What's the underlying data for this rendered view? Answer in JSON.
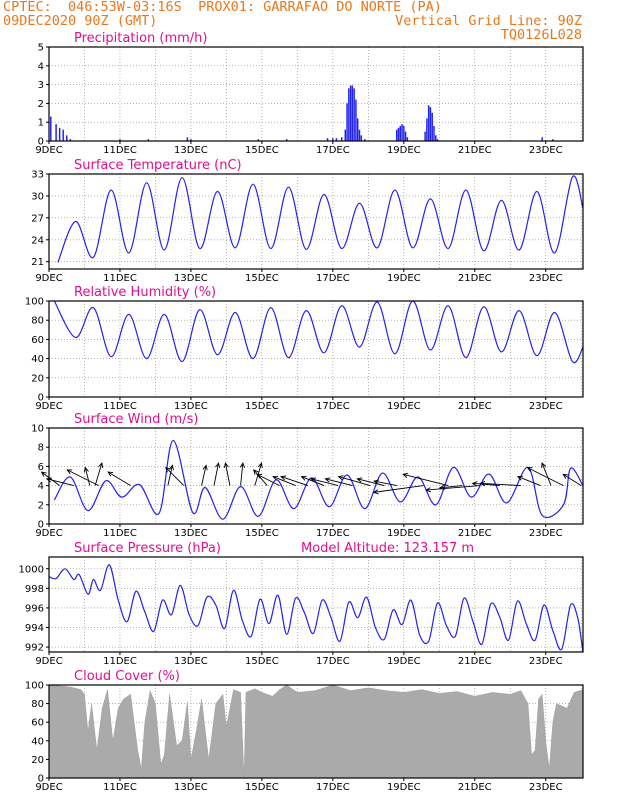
{
  "header": {
    "line1_left": "CPTEC:  046:53W-03:16S  PROX01: GARRAFAO DO NORTE (PA)",
    "line2_left": "09DEC2020 90Z (GMT)",
    "line2_right": "Vertical Grid Line: 90Z",
    "line3_right": "TQ0126L028"
  },
  "colors": {
    "header": "#e8781c",
    "title": "#e0108c",
    "series": "#2222ee",
    "cloud": "#aaaaaa",
    "arrow": "#000000"
  },
  "x_ticks": [
    "9DEC",
    "11DEC",
    "13DEC",
    "15DEC",
    "17DEC",
    "19DEC",
    "21DEC",
    "23DEC"
  ],
  "chart_data": [
    {
      "id": "precip",
      "type": "bar",
      "title": "Precipitation (mm/h)",
      "ylim": [
        0,
        5
      ],
      "yticks": [
        0,
        1,
        2,
        3,
        4,
        5
      ],
      "points": [
        [
          9.05,
          1.3
        ],
        [
          9.2,
          0.9
        ],
        [
          9.3,
          0.7
        ],
        [
          9.4,
          0.6
        ],
        [
          9.5,
          0.3
        ],
        [
          9.6,
          0.1
        ],
        [
          11.0,
          0.1
        ],
        [
          11.8,
          0.1
        ],
        [
          12.9,
          0.2
        ],
        [
          13.0,
          0.1
        ],
        [
          14.9,
          0.1
        ],
        [
          15.7,
          0.1
        ],
        [
          16.85,
          0.15
        ],
        [
          17.0,
          0.15
        ],
        [
          17.1,
          0.15
        ],
        [
          17.25,
          0.2
        ],
        [
          17.35,
          0.6
        ],
        [
          17.4,
          2.0
        ],
        [
          17.45,
          2.8
        ],
        [
          17.5,
          2.95
        ],
        [
          17.55,
          2.95
        ],
        [
          17.6,
          2.8
        ],
        [
          17.65,
          2.2
        ],
        [
          17.7,
          1.2
        ],
        [
          17.75,
          0.6
        ],
        [
          17.8,
          0.3
        ],
        [
          17.9,
          0.1
        ],
        [
          18.8,
          0.6
        ],
        [
          18.85,
          0.7
        ],
        [
          18.9,
          0.8
        ],
        [
          18.95,
          0.9
        ],
        [
          19.0,
          0.8
        ],
        [
          19.05,
          0.5
        ],
        [
          19.1,
          0.2
        ],
        [
          19.6,
          0.5
        ],
        [
          19.65,
          1.2
        ],
        [
          19.7,
          1.9
        ],
        [
          19.75,
          1.8
        ],
        [
          19.8,
          1.5
        ],
        [
          19.85,
          0.8
        ],
        [
          19.9,
          0.3
        ],
        [
          19.95,
          0.1
        ],
        [
          22.9,
          0.2
        ],
        [
          23.2,
          0.1
        ]
      ]
    },
    {
      "id": "temp",
      "type": "line",
      "title": "Surface Temperature (nC)",
      "ylim": [
        20,
        33
      ],
      "yticks": [
        21,
        24,
        27,
        30,
        33
      ],
      "minima": [
        [
          9.25,
          20.9
        ],
        [
          10.25,
          21.6
        ],
        [
          11.25,
          22.2
        ],
        [
          12.25,
          22.6
        ],
        [
          13.25,
          22.8
        ],
        [
          14.25,
          22.9
        ],
        [
          15.25,
          22.8
        ],
        [
          16.25,
          22.7
        ],
        [
          17.25,
          22.8
        ],
        [
          18.25,
          22.9
        ],
        [
          19.25,
          22.9
        ],
        [
          20.25,
          22.8
        ],
        [
          21.25,
          22.5
        ],
        [
          22.25,
          22.6
        ],
        [
          23.25,
          22.2
        ]
      ],
      "maxima": [
        [
          9.75,
          26.5
        ],
        [
          10.75,
          30.8
        ],
        [
          11.75,
          31.8
        ],
        [
          12.75,
          32.5
        ],
        [
          13.75,
          30.6
        ],
        [
          14.75,
          31.6
        ],
        [
          15.75,
          31.2
        ],
        [
          16.75,
          30.2
        ],
        [
          17.75,
          29.0
        ],
        [
          18.75,
          30.8
        ],
        [
          19.75,
          29.6
        ],
        [
          20.75,
          30.8
        ],
        [
          21.75,
          29.4
        ],
        [
          22.75,
          30.6
        ],
        [
          23.75,
          32.6
        ]
      ],
      "end": [
        24.05,
        28.3
      ]
    },
    {
      "id": "rh",
      "type": "line",
      "title": "Relative Humidity (%)",
      "ylim": [
        0,
        100
      ],
      "yticks": [
        0,
        20,
        40,
        60,
        80,
        100
      ],
      "maxima": [
        [
          9.15,
          100
        ],
        [
          10.25,
          93
        ],
        [
          11.25,
          86
        ],
        [
          12.25,
          86
        ],
        [
          13.25,
          91
        ],
        [
          14.25,
          88
        ],
        [
          15.25,
          93
        ],
        [
          16.25,
          90
        ],
        [
          17.25,
          95
        ],
        [
          18.25,
          99
        ],
        [
          19.25,
          100
        ],
        [
          20.25,
          95
        ],
        [
          21.25,
          94
        ],
        [
          22.25,
          90
        ],
        [
          23.25,
          88
        ]
      ],
      "minima": [
        [
          9.75,
          62
        ],
        [
          10.75,
          42
        ],
        [
          11.75,
          40
        ],
        [
          12.75,
          37
        ],
        [
          13.75,
          44
        ],
        [
          14.75,
          40
        ],
        [
          15.75,
          41
        ],
        [
          16.75,
          46
        ],
        [
          17.75,
          52
        ],
        [
          18.75,
          45
        ],
        [
          19.75,
          49
        ],
        [
          20.75,
          41
        ],
        [
          21.75,
          47
        ],
        [
          22.75,
          43
        ],
        [
          23.75,
          37
        ]
      ],
      "end": [
        24.05,
        52
      ]
    },
    {
      "id": "wind",
      "type": "line",
      "title": "Surface Wind (m/s)",
      "ylim": [
        0,
        10
      ],
      "yticks": [
        0,
        2,
        4,
        6,
        8,
        10
      ],
      "minima": [
        [
          9.15,
          2.5
        ],
        [
          10.1,
          1.4
        ],
        [
          11.05,
          2.8
        ],
        [
          12.1,
          1.1
        ],
        [
          13.05,
          1.2
        ],
        [
          13.9,
          0.5
        ],
        [
          14.9,
          0.8
        ],
        [
          15.9,
          1.6
        ],
        [
          16.9,
          1.8
        ],
        [
          17.9,
          1.6
        ],
        [
          18.9,
          2.3
        ],
        [
          19.9,
          2.0
        ],
        [
          20.9,
          2.8
        ],
        [
          21.9,
          2.2
        ],
        [
          22.9,
          0.9
        ],
        [
          23.5,
          2.0
        ]
      ],
      "maxima": [
        [
          9.6,
          4.9
        ],
        [
          10.6,
          4.5
        ],
        [
          11.55,
          4.1
        ],
        [
          12.5,
          8.7
        ],
        [
          13.4,
          3.8
        ],
        [
          14.4,
          3.9
        ],
        [
          15.4,
          4.6
        ],
        [
          16.4,
          4.8
        ],
        [
          17.4,
          5.1
        ],
        [
          18.4,
          5.3
        ],
        [
          19.4,
          4.9
        ],
        [
          20.4,
          5.9
        ],
        [
          21.4,
          5.2
        ],
        [
          22.5,
          5.9
        ],
        [
          23.7,
          5.8
        ]
      ],
      "end": [
        24.05,
        4.0
      ],
      "arrows": [
        [
          9.3,
          -0.4,
          -0.3
        ],
        [
          9.7,
          -0.6,
          -0.15
        ],
        [
          10.15,
          -0.1,
          -0.4
        ],
        [
          10.3,
          0.15,
          -0.5
        ],
        [
          10.4,
          -0.7,
          -0.35
        ],
        [
          11.3,
          -0.5,
          -0.3
        ],
        [
          12.35,
          0.1,
          -0.45
        ],
        [
          12.8,
          -0.4,
          -0.4
        ],
        [
          13.3,
          0.1,
          -0.45
        ],
        [
          13.65,
          0.1,
          -0.5
        ],
        [
          14.1,
          -0.1,
          -0.5
        ],
        [
          14.4,
          0.05,
          -0.5
        ],
        [
          14.8,
          0.15,
          -0.5
        ],
        [
          15.15,
          -0.3,
          -0.35
        ],
        [
          15.5,
          -0.5,
          -0.25
        ],
        [
          15.95,
          -0.5,
          -0.2
        ],
        [
          16.3,
          -0.6,
          -0.2
        ],
        [
          16.75,
          -0.5,
          -0.2
        ],
        [
          17.15,
          -0.6,
          -0.15
        ],
        [
          17.55,
          -0.6,
          -0.15
        ],
        [
          18.05,
          -0.7,
          -0.2
        ],
        [
          18.45,
          -0.6,
          -0.15
        ],
        [
          18.8,
          -0.5,
          -0.1
        ],
        [
          19.55,
          -1.1,
          0.15
        ],
        [
          20.25,
          -1.0,
          -0.25
        ],
        [
          20.65,
          -0.5,
          0.05
        ],
        [
          21.15,
          -1.2,
          0.1
        ],
        [
          21.7,
          -0.6,
          -0.05
        ],
        [
          22.3,
          -0.9,
          -0.05
        ],
        [
          22.85,
          -0.5,
          -0.2
        ],
        [
          23.15,
          -0.2,
          -0.5
        ],
        [
          23.5,
          -0.8,
          -0.4
        ],
        [
          24.0,
          -0.4,
          -0.25
        ]
      ]
    },
    {
      "id": "pres",
      "type": "line",
      "title": "Surface Pressure (hPa)",
      "annotation": "Model Altitude: 123.157  m",
      "ylim": [
        991.5,
        1001.2
      ],
      "yticks": [
        992,
        994,
        996,
        998,
        1000
      ],
      "points": [
        [
          9.0,
          999.2
        ],
        [
          9.2,
          999.0
        ],
        [
          9.45,
          1000.0
        ],
        [
          9.7,
          998.9
        ],
        [
          9.85,
          999.4
        ],
        [
          10.1,
          997.4
        ],
        [
          10.25,
          998.9
        ],
        [
          10.45,
          997.8
        ],
        [
          10.7,
          1000.4
        ],
        [
          10.95,
          996.8
        ],
        [
          11.2,
          994.6
        ],
        [
          11.45,
          997.7
        ],
        [
          11.7,
          995.6
        ],
        [
          11.95,
          993.6
        ],
        [
          12.2,
          996.8
        ],
        [
          12.45,
          995.3
        ],
        [
          12.7,
          998.3
        ],
        [
          12.95,
          995.3
        ],
        [
          13.2,
          994.2
        ],
        [
          13.45,
          997.1
        ],
        [
          13.7,
          996.3
        ],
        [
          13.95,
          993.9
        ],
        [
          14.2,
          997.8
        ],
        [
          14.45,
          994.7
        ],
        [
          14.7,
          993.1
        ],
        [
          14.95,
          996.9
        ],
        [
          15.2,
          994.4
        ],
        [
          15.45,
          997.3
        ],
        [
          15.7,
          993.3
        ],
        [
          15.95,
          997.0
        ],
        [
          16.2,
          995.5
        ],
        [
          16.45,
          993.4
        ],
        [
          16.7,
          996.8
        ],
        [
          16.95,
          995.0
        ],
        [
          17.2,
          992.6
        ],
        [
          17.45,
          996.6
        ],
        [
          17.7,
          995.0
        ],
        [
          17.95,
          997.1
        ],
        [
          18.2,
          994.0
        ],
        [
          18.45,
          992.8
        ],
        [
          18.7,
          995.8
        ],
        [
          18.95,
          994.3
        ],
        [
          19.2,
          996.8
        ],
        [
          19.45,
          993.2
        ],
        [
          19.7,
          992.6
        ],
        [
          19.95,
          996.5
        ],
        [
          20.2,
          994.2
        ],
        [
          20.45,
          993.1
        ],
        [
          20.7,
          997.0
        ],
        [
          20.95,
          994.6
        ],
        [
          21.2,
          992.3
        ],
        [
          21.45,
          996.4
        ],
        [
          21.7,
          995.1
        ],
        [
          21.95,
          992.7
        ],
        [
          22.2,
          996.7
        ],
        [
          22.45,
          994.4
        ],
        [
          22.7,
          992.7
        ],
        [
          22.95,
          996.3
        ],
        [
          23.2,
          993.7
        ],
        [
          23.45,
          991.8
        ],
        [
          23.7,
          996.3
        ],
        [
          23.9,
          995.0
        ],
        [
          24.05,
          991.5
        ]
      ]
    },
    {
      "id": "cloud",
      "type": "area",
      "title": "Cloud Cover (%)",
      "ylim": [
        0,
        100
      ],
      "yticks": [
        0,
        20,
        40,
        60,
        80,
        100
      ],
      "points": [
        [
          9.0,
          100
        ],
        [
          9.6,
          98
        ],
        [
          9.9,
          95
        ],
        [
          10.0,
          90
        ],
        [
          10.1,
          50
        ],
        [
          10.2,
          80
        ],
        [
          10.35,
          30
        ],
        [
          10.5,
          75
        ],
        [
          10.65,
          95
        ],
        [
          10.8,
          40
        ],
        [
          10.95,
          75
        ],
        [
          11.1,
          85
        ],
        [
          11.3,
          90
        ],
        [
          11.5,
          30
        ],
        [
          11.6,
          10
        ],
        [
          11.7,
          60
        ],
        [
          11.85,
          94
        ],
        [
          12.0,
          80
        ],
        [
          12.15,
          15
        ],
        [
          12.25,
          25
        ],
        [
          12.4,
          90
        ],
        [
          12.6,
          35
        ],
        [
          12.75,
          40
        ],
        [
          12.9,
          82
        ],
        [
          13.0,
          20
        ],
        [
          13.15,
          50
        ],
        [
          13.3,
          85
        ],
        [
          13.5,
          20
        ],
        [
          13.7,
          80
        ],
        [
          13.9,
          90
        ],
        [
          14.0,
          55
        ],
        [
          14.2,
          95
        ],
        [
          14.4,
          92
        ],
        [
          14.5,
          0
        ],
        [
          14.55,
          92
        ],
        [
          14.8,
          96
        ],
        [
          15.0,
          92
        ],
        [
          15.3,
          88
        ],
        [
          15.5,
          95
        ],
        [
          15.7,
          100
        ],
        [
          16.0,
          92
        ],
        [
          16.5,
          94
        ],
        [
          17.0,
          100
        ],
        [
          17.5,
          94
        ],
        [
          18.0,
          97
        ],
        [
          18.5,
          94
        ],
        [
          19.0,
          92
        ],
        [
          19.5,
          95
        ],
        [
          20.0,
          91
        ],
        [
          20.5,
          93
        ],
        [
          21.0,
          88
        ],
        [
          21.5,
          92
        ],
        [
          22.0,
          90
        ],
        [
          22.3,
          94
        ],
        [
          22.5,
          80
        ],
        [
          22.6,
          25
        ],
        [
          22.7,
          30
        ],
        [
          22.8,
          85
        ],
        [
          22.9,
          90
        ],
        [
          23.0,
          40
        ],
        [
          23.1,
          10
        ],
        [
          23.2,
          60
        ],
        [
          23.3,
          80
        ],
        [
          23.6,
          75
        ],
        [
          23.8,
          92
        ],
        [
          24.05,
          95
        ]
      ]
    }
  ]
}
